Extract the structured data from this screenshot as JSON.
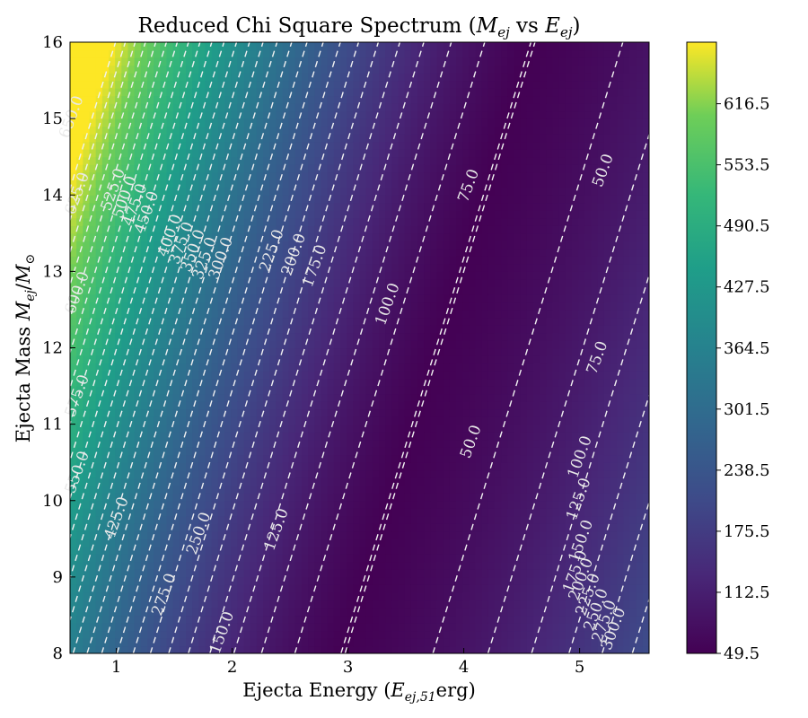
{
  "chart_data": {
    "type": "heatmap",
    "title": "Reduced Chi Square Spectrum",
    "title_math": {
      "sym1": "M",
      "sub1": "ej",
      "mid": " vs ",
      "sym2": "E",
      "sub2": "ej"
    },
    "xlabel": "Ejecta Energy",
    "xlabel_math": {
      "sym": "E",
      "sub": "ej,51",
      "unit": "erg"
    },
    "ylabel": "Ejecta Mass",
    "ylabel_math": {
      "sym1": "M",
      "sub1": "ej",
      "sym2": "M",
      "sub2": "⊙"
    },
    "xlim": [
      0.6,
      5.6
    ],
    "ylim": [
      8,
      16
    ],
    "xticks": [
      "1",
      "2",
      "3",
      "4",
      "5"
    ],
    "yticks": [
      "8",
      "9",
      "10",
      "11",
      "12",
      "13",
      "14",
      "15",
      "16"
    ],
    "colormap": "viridis",
    "colorbar_ticks": [
      "49.5",
      "112.5",
      "175.5",
      "238.5",
      "301.5",
      "364.5",
      "427.5",
      "490.5",
      "553.5",
      "616.5"
    ],
    "colorbar_range": [
      49.5,
      680
    ],
    "contour_style": "dashed white",
    "contour_labels": [
      {
        "text": "650.0",
        "x": 0.65,
        "y": 15.0
      },
      {
        "text": "625.0",
        "x": 0.7,
        "y": 14.0
      },
      {
        "text": "600.0",
        "x": 0.7,
        "y": 12.7
      },
      {
        "text": "575.0",
        "x": 0.7,
        "y": 11.35
      },
      {
        "text": "550.0",
        "x": 0.7,
        "y": 10.35
      },
      {
        "text": "525.0",
        "x": 1.01,
        "y": 14.05
      },
      {
        "text": "500.0",
        "x": 1.11,
        "y": 13.95
      },
      {
        "text": "475.0",
        "x": 1.2,
        "y": 13.85
      },
      {
        "text": "450.0",
        "x": 1.3,
        "y": 13.75
      },
      {
        "text": "425.0",
        "x": 1.04,
        "y": 9.75
      },
      {
        "text": "400.0",
        "x": 1.5,
        "y": 13.45
      },
      {
        "text": "375.0",
        "x": 1.6,
        "y": 13.35
      },
      {
        "text": "350.0",
        "x": 1.7,
        "y": 13.25
      },
      {
        "text": "325.0",
        "x": 1.8,
        "y": 13.15
      },
      {
        "text": "300.0",
        "x": 1.94,
        "y": 13.15
      },
      {
        "text": "275.0",
        "x": 1.45,
        "y": 8.75
      },
      {
        "text": "250.0",
        "x": 1.75,
        "y": 9.55
      },
      {
        "text": "225.0",
        "x": 2.38,
        "y": 13.25
      },
      {
        "text": "200.0",
        "x": 2.57,
        "y": 13.2
      },
      {
        "text": "175.0",
        "x": 2.75,
        "y": 13.05
      },
      {
        "text": "150.0",
        "x": 1.95,
        "y": 8.25
      },
      {
        "text": "125.0",
        "x": 2.42,
        "y": 9.6
      },
      {
        "text": "100.0",
        "x": 3.38,
        "y": 12.55
      },
      {
        "text": "75.0",
        "x": 4.08,
        "y": 14.1
      },
      {
        "text": "50.0",
        "x": 4.1,
        "y": 10.75
      },
      {
        "text": "75.0",
        "x": 5.19,
        "y": 11.85
      },
      {
        "text": "50.0",
        "x": 5.24,
        "y": 14.3
      },
      {
        "text": "100.0",
        "x": 5.04,
        "y": 10.55
      },
      {
        "text": "125.0",
        "x": 5.03,
        "y": 10.0
      },
      {
        "text": "150.0",
        "x": 5.05,
        "y": 9.45
      },
      {
        "text": "175.0",
        "x": 5.0,
        "y": 9.05
      },
      {
        "text": "200.0",
        "x": 5.05,
        "y": 8.95
      },
      {
        "text": "225.0",
        "x": 5.11,
        "y": 8.75
      },
      {
        "text": "250.0",
        "x": 5.18,
        "y": 8.55
      },
      {
        "text": "275.0",
        "x": 5.25,
        "y": 8.4
      },
      {
        "text": "300.0",
        "x": 5.33,
        "y": 8.3
      }
    ]
  }
}
